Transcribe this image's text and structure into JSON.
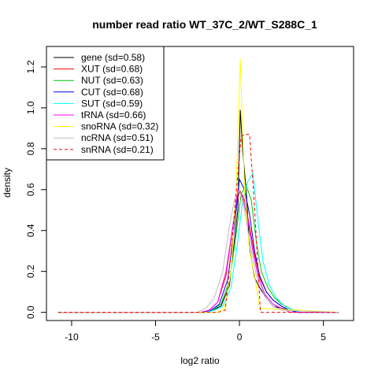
{
  "chart_data": {
    "type": "line",
    "title": "number read ratio WT_37C_2/WT_S288C_1",
    "xlabel": "log2 ratio",
    "ylabel": "density",
    "xlim": [
      -11.5,
      6.8
    ],
    "ylim": [
      -0.04,
      1.3
    ],
    "x_ticks": [
      -10,
      -5,
      0,
      5
    ],
    "x_tick_labels": [
      "-10",
      "-5",
      "0",
      "5"
    ],
    "y_ticks": [
      0.0,
      0.2,
      0.4,
      0.6,
      0.8,
      1.0,
      1.2
    ],
    "y_tick_labels": [
      "0.0",
      "0.2",
      "0.4",
      "0.6",
      "0.8",
      "1.0",
      "1.2"
    ],
    "grid": false,
    "legend_position": "top-left",
    "series": [
      {
        "name": "gene (sd=0.58)",
        "color": "#000000",
        "dash": false,
        "x": [
          -10.8,
          -2.1,
          -1.6,
          -1.1,
          -0.6,
          -0.1,
          0.05,
          0.2,
          0.4,
          0.6,
          0.9,
          1.2,
          1.6,
          2.0,
          2.5,
          3.0,
          3.5,
          5.9
        ],
        "y": [
          0,
          0,
          0.01,
          0.03,
          0.13,
          0.5,
          0.99,
          0.78,
          0.6,
          0.31,
          0.17,
          0.12,
          0.07,
          0.03,
          0.02,
          0.01,
          0,
          0
        ]
      },
      {
        "name": "XUT (sd=0.68)",
        "color": "#ff0000",
        "dash": false,
        "x": [
          -10.8,
          -2.3,
          -1.8,
          -1.3,
          -0.8,
          -0.4,
          0.0,
          0.3,
          0.6,
          0.9,
          1.2,
          1.6,
          2.0,
          2.5,
          3.0,
          3.5,
          5.9
        ],
        "y": [
          0,
          0,
          0.01,
          0.05,
          0.18,
          0.42,
          0.6,
          0.55,
          0.42,
          0.28,
          0.17,
          0.1,
          0.06,
          0.03,
          0.01,
          0,
          0
        ]
      },
      {
        "name": "NUT (sd=0.63)",
        "color": "#00cc00",
        "dash": false,
        "x": [
          -10.8,
          -2.1,
          -1.6,
          -1.1,
          -0.6,
          -0.2,
          0.1,
          0.4,
          0.7,
          1.0,
          1.3,
          1.7,
          2.1,
          2.5,
          3.0,
          3.5,
          5.9
        ],
        "y": [
          0,
          0,
          0.01,
          0.04,
          0.15,
          0.38,
          0.58,
          0.62,
          0.55,
          0.35,
          0.2,
          0.12,
          0.07,
          0.04,
          0.02,
          0,
          0
        ]
      },
      {
        "name": "CUT (sd=0.68)",
        "color": "#0000ff",
        "dash": false,
        "x": [
          -10.8,
          -2.2,
          -1.7,
          -1.2,
          -0.7,
          -0.3,
          0.0,
          0.3,
          0.6,
          0.9,
          1.2,
          1.6,
          2.0,
          2.5,
          3.0,
          3.5,
          5.9
        ],
        "y": [
          0,
          0,
          0.01,
          0.04,
          0.16,
          0.42,
          0.65,
          0.6,
          0.48,
          0.3,
          0.18,
          0.1,
          0.06,
          0.03,
          0.01,
          0,
          0
        ]
      },
      {
        "name": "SUT (sd=0.59)",
        "color": "#00ffff",
        "dash": false,
        "x": [
          -10.8,
          -2.0,
          -1.5,
          -1.0,
          -0.5,
          -0.1,
          0.2,
          0.5,
          0.8,
          1.1,
          1.4,
          1.8,
          2.2,
          2.7,
          3.2,
          3.7,
          5.9
        ],
        "y": [
          0,
          0,
          0.01,
          0.03,
          0.12,
          0.35,
          0.55,
          0.64,
          0.68,
          0.45,
          0.25,
          0.13,
          0.07,
          0.03,
          0.01,
          0,
          0
        ]
      },
      {
        "name": "tRNA (sd=0.66)",
        "color": "#ff00ff",
        "dash": false,
        "x": [
          -10.8,
          -2.3,
          -1.8,
          -1.3,
          -0.8,
          -0.4,
          -0.1,
          0.2,
          0.5,
          0.8,
          1.1,
          1.5,
          2.0,
          2.5,
          3.0,
          5.9
        ],
        "y": [
          0,
          0,
          0.01,
          0.05,
          0.2,
          0.42,
          0.6,
          0.56,
          0.45,
          0.3,
          0.18,
          0.09,
          0.04,
          0.02,
          0,
          0
        ]
      },
      {
        "name": "snoRNA (sd=0.32)",
        "color": "#ffff00",
        "dash": false,
        "x": [
          -10.8,
          -1.3,
          -0.9,
          -0.5,
          -0.2,
          0.05,
          0.3,
          0.6,
          0.9,
          1.2,
          5.9
        ],
        "y": [
          0,
          0,
          0.02,
          0.2,
          0.6,
          1.24,
          0.6,
          0.3,
          0.18,
          0.02,
          0
        ]
      },
      {
        "name": "ncRNA (sd=0.51)",
        "color": "#bebebe",
        "dash": false,
        "x": [
          -10.8,
          -2.5,
          -2.0,
          -1.5,
          -1.0,
          -0.6,
          -0.3,
          0.0,
          0.3,
          0.6,
          1.0,
          1.5,
          2.0,
          2.5,
          5.9
        ],
        "y": [
          0,
          0,
          0.02,
          0.07,
          0.2,
          0.42,
          0.55,
          0.6,
          0.5,
          0.35,
          0.18,
          0.08,
          0.03,
          0.01,
          0
        ]
      },
      {
        "name": "snRNA (sd=0.21)",
        "color": "#ff0000",
        "dash": true,
        "x": [
          -10.8,
          -1.3,
          -0.85,
          -0.5,
          -0.2,
          0.1,
          0.3,
          0.6,
          0.85,
          1.25,
          5.9
        ],
        "y": [
          0,
          0,
          0.01,
          0.29,
          0.58,
          0.86,
          0.87,
          0.87,
          0.58,
          0,
          0
        ]
      }
    ]
  }
}
